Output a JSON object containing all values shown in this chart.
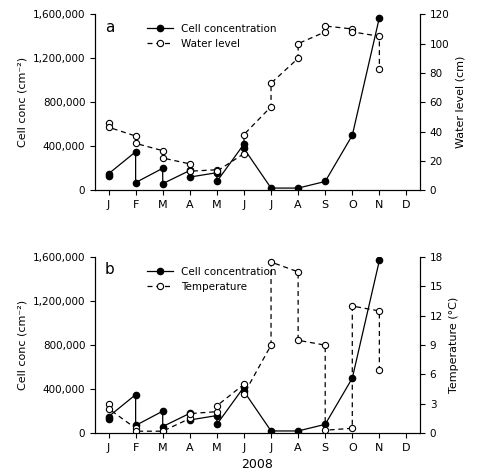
{
  "month_labels": [
    "J",
    "F",
    "M",
    "A",
    "M",
    "J",
    "J",
    "A",
    "S",
    "O",
    "N",
    "D"
  ],
  "panel_a": {
    "cell_x": [
      0,
      0,
      1,
      1,
      2,
      2,
      3,
      3,
      4,
      4,
      5,
      5,
      6,
      7,
      8,
      9,
      10
    ],
    "cell_y": [
      130000,
      150000,
      350000,
      70000,
      200000,
      60000,
      180000,
      120000,
      160000,
      80000,
      420000,
      380000,
      20000,
      20000,
      80000,
      500000,
      1570000
    ],
    "water_x": [
      0,
      0,
      1,
      1,
      2,
      2,
      3,
      3,
      4,
      4,
      5,
      5,
      6,
      6,
      7,
      7,
      8,
      8,
      9,
      9,
      10,
      10
    ],
    "water_y": [
      46,
      43,
      37,
      32,
      27,
      22,
      18,
      13,
      14,
      13,
      25,
      38,
      57,
      73,
      90,
      100,
      108,
      112,
      110,
      108,
      105,
      83
    ]
  },
  "panel_b": {
    "cell_x": [
      0,
      0,
      1,
      1,
      2,
      2,
      3,
      3,
      4,
      4,
      5,
      5,
      6,
      7,
      8,
      9,
      10
    ],
    "cell_y": [
      130000,
      150000,
      350000,
      70000,
      200000,
      60000,
      180000,
      120000,
      160000,
      80000,
      420000,
      380000,
      20000,
      20000,
      80000,
      500000,
      1570000
    ],
    "temp_x": [
      0,
      0,
      1,
      1,
      2,
      2,
      3,
      3,
      4,
      4,
      5,
      5,
      6,
      6,
      7,
      7,
      8,
      8,
      9,
      9,
      10,
      10
    ],
    "temp_y": [
      3.0,
      2.5,
      0.5,
      0.2,
      0.2,
      0.2,
      1.5,
      2.0,
      2.2,
      2.8,
      5.0,
      4.0,
      9.0,
      17.5,
      16.5,
      9.5,
      9.0,
      0.3,
      0.5,
      13.0,
      12.5,
      6.5
    ]
  },
  "ylabel_left": "Cell conc (cm⁻²)",
  "ylabel_right_a": "Water level (cm)",
  "ylabel_right_b": "Temperature (°C)",
  "xlabel": "2008",
  "ylim_cell": [
    0,
    1600000
  ],
  "ylim_water": [
    0,
    120
  ],
  "ylim_temp": [
    0,
    18
  ],
  "yticks_cell": [
    0,
    400000,
    800000,
    1200000,
    1600000
  ],
  "ytick_labels_cell": [
    "0",
    "400,000",
    "800,000",
    "1,200,000",
    "1,600,000"
  ],
  "yticks_water": [
    0,
    20,
    40,
    60,
    80,
    100,
    120
  ],
  "yticks_temp": [
    0,
    3,
    6,
    9,
    12,
    15,
    18
  ]
}
